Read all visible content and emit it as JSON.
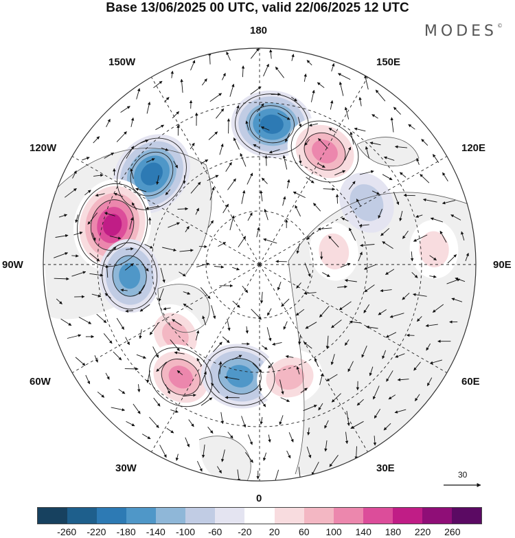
{
  "title": "Base 13/06/2025 00 UTC, valid 22/06/2025 12 UTC",
  "brand": "MODES",
  "brand_mark": "©",
  "map": {
    "projection": "north-polar-stereographic",
    "longitude_labels": {
      "top": "180",
      "top_right": "150E",
      "upper_right": "120E",
      "right": "90E",
      "lower_right": "60E",
      "bottom_right": "30E",
      "bottom": "0",
      "bottom_left": "30W",
      "lower_left": "60W",
      "left": "90W",
      "upper_left": "120W",
      "top_left": "150W"
    },
    "reference_vector": {
      "label": "30"
    },
    "anomaly_centers": [
      {
        "lon": -130,
        "value": -200,
        "sign": "negative"
      },
      {
        "lon": -105,
        "value": 240,
        "sign": "positive"
      },
      {
        "lon": -85,
        "value": -140,
        "sign": "negative"
      },
      {
        "lon": -50,
        "value": 100,
        "sign": "positive"
      },
      {
        "lon": -35,
        "value": 140,
        "sign": "positive"
      },
      {
        "lon": -10,
        "value": -160,
        "sign": "negative"
      },
      {
        "lon": 15,
        "value": 100,
        "sign": "positive"
      },
      {
        "lon": 175,
        "value": -180,
        "sign": "negative"
      },
      {
        "lon": 150,
        "value": 160,
        "sign": "positive"
      },
      {
        "lon": 120,
        "value": -80,
        "sign": "negative"
      },
      {
        "lon": 100,
        "value": 60,
        "sign": "positive"
      },
      {
        "lon": 95,
        "value": 60,
        "sign": "positive"
      }
    ],
    "colors": {
      "land_shade": "#efefef",
      "coast": "#555555",
      "grid": "#222222",
      "vector": "#111111",
      "contour": "#222222"
    }
  },
  "colorbar": {
    "colors": [
      "#17415f",
      "#1e5f8c",
      "#2d7ab4",
      "#4f97c8",
      "#8fb7d8",
      "#c1cce4",
      "#e4e4f1",
      "#ffffff",
      "#f8dcdf",
      "#f3b7c3",
      "#ec87ad",
      "#dc4d9a",
      "#c01d86",
      "#8f0e77",
      "#5b0a63"
    ],
    "ticks": [
      "-260",
      "-220",
      "-180",
      "-140",
      "-100",
      "-60",
      "-20",
      "20",
      "60",
      "100",
      "140",
      "180",
      "220",
      "260"
    ]
  }
}
